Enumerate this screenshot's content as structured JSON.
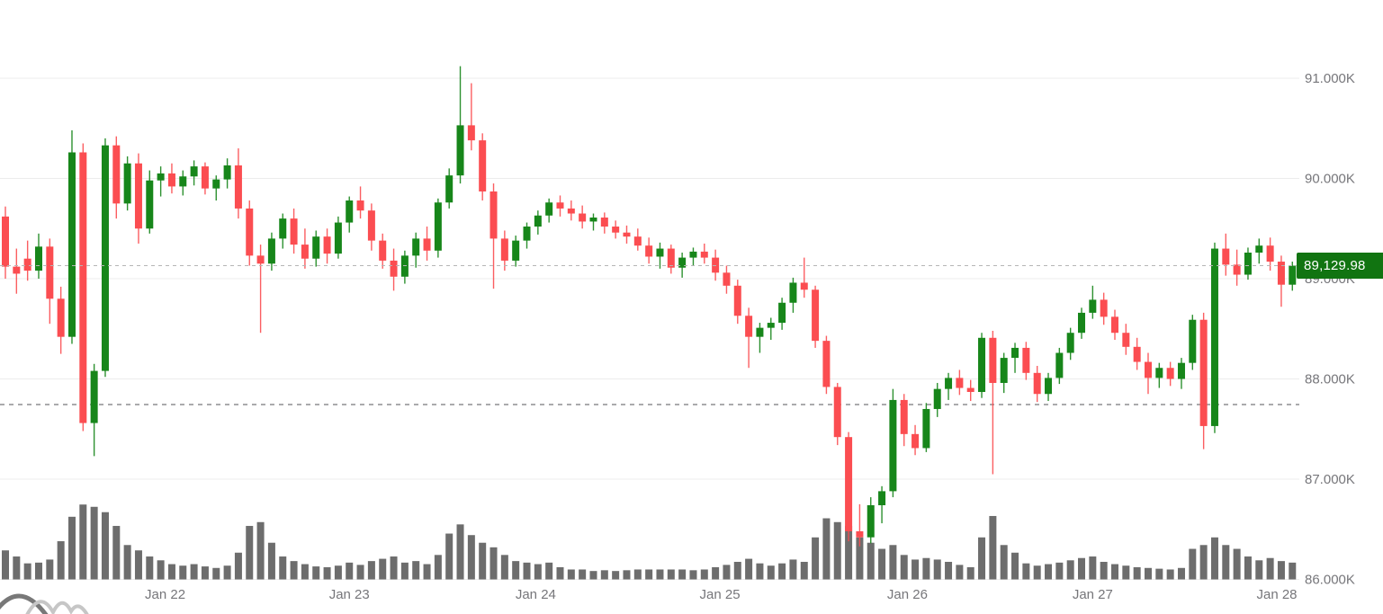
{
  "chart": {
    "kind": "candlestick-with-volume",
    "price_badge_label": "89,129.98",
    "icons": {
      "watermark_logo": "overlapping-wave-arcs"
    }
  },
  "style": {
    "up_color": "#17861a",
    "down_color": "#fb4d51",
    "volume_color": "#6d6d6d",
    "grid_color": "#ececec",
    "axis_text_color": "#76767a",
    "badge_bg": "#117411",
    "badge_text_color": "#ffffff",
    "current_price_line_color": "#b5b5b5",
    "prev_close_line_color": "#55555a",
    "watermark_dark": "#787878",
    "watermark_light": "#c6c6c6",
    "background": "#ffffff"
  },
  "chart_data": {
    "type": "candlestick",
    "title": "",
    "current_price": 89129.98,
    "previous_close_level": 87745,
    "grid": "horizontal-only",
    "legend": "none",
    "ylim": [
      85655,
      91780
    ],
    "y_axis": {
      "tick_labels": [
        "91.000K",
        "90.000K",
        "89.000K",
        "88.000K",
        "87.000K",
        "86.000K"
      ],
      "tick_values": [
        91000,
        90000,
        89000,
        88000,
        87000,
        86000
      ]
    },
    "x_axis": {
      "tick_labels": [
        "Jan 22",
        "Jan 23",
        "Jan 24",
        "Jan 25",
        "Jan 26",
        "Jan 27",
        "Jan 28"
      ],
      "tick_positions": [
        14.4,
        31,
        47.8,
        64.4,
        81.3,
        98,
        114.6
      ]
    },
    "volume_max": 100,
    "candles": [
      [
        89620,
        89720,
        89000,
        89120,
        38
      ],
      [
        89120,
        89300,
        88850,
        89050,
        30
      ],
      [
        89200,
        89380,
        88980,
        89080,
        21
      ],
      [
        89080,
        89450,
        89000,
        89320,
        22
      ],
      [
        89320,
        89400,
        88550,
        88800,
        26
      ],
      [
        88800,
        88920,
        88250,
        88420,
        50
      ],
      [
        88420,
        90480,
        88350,
        90260,
        82
      ],
      [
        90260,
        90350,
        87480,
        87560,
        98
      ],
      [
        87560,
        88150,
        87230,
        88080,
        95
      ],
      [
        88080,
        90400,
        88020,
        90330,
        88
      ],
      [
        90330,
        90420,
        89600,
        89750,
        70
      ],
      [
        89750,
        90220,
        89680,
        90150,
        45
      ],
      [
        90150,
        90250,
        89350,
        89500,
        38
      ],
      [
        89500,
        90080,
        89450,
        89980,
        30
      ],
      [
        89980,
        90120,
        89820,
        90050,
        25
      ],
      [
        90050,
        90150,
        89850,
        89920,
        20
      ],
      [
        89920,
        90080,
        89830,
        90020,
        18
      ],
      [
        90020,
        90180,
        89930,
        90120,
        20
      ],
      [
        90120,
        90160,
        89840,
        89900,
        17
      ],
      [
        89900,
        90030,
        89780,
        89990,
        15
      ],
      [
        89990,
        90200,
        89900,
        90130,
        18
      ],
      [
        90130,
        90300,
        89600,
        89700,
        35
      ],
      [
        89700,
        89780,
        89130,
        89230,
        70
      ],
      [
        89230,
        89340,
        88460,
        89150,
        75
      ],
      [
        89150,
        89460,
        89080,
        89400,
        48
      ],
      [
        89400,
        89650,
        89300,
        89600,
        30
      ],
      [
        89600,
        89700,
        89250,
        89340,
        24
      ],
      [
        89340,
        89500,
        89100,
        89200,
        20
      ],
      [
        89200,
        89480,
        89120,
        89420,
        17
      ],
      [
        89420,
        89500,
        89150,
        89250,
        16
      ],
      [
        89250,
        89620,
        89200,
        89560,
        18
      ],
      [
        89560,
        89820,
        89460,
        89780,
        22
      ],
      [
        89780,
        89920,
        89600,
        89680,
        19
      ],
      [
        89680,
        89750,
        89280,
        89380,
        24
      ],
      [
        89380,
        89450,
        89100,
        89180,
        27
      ],
      [
        89180,
        89300,
        88880,
        89020,
        30
      ],
      [
        89020,
        89280,
        88950,
        89230,
        22
      ],
      [
        89230,
        89460,
        89110,
        89400,
        24
      ],
      [
        89400,
        89520,
        89180,
        89280,
        20
      ],
      [
        89280,
        89800,
        89210,
        89760,
        32
      ],
      [
        89760,
        90100,
        89700,
        90030,
        60
      ],
      [
        90030,
        91120,
        89950,
        90530,
        72
      ],
      [
        90530,
        90950,
        90280,
        90380,
        58
      ],
      [
        90380,
        90450,
        89780,
        89870,
        48
      ],
      [
        89870,
        89950,
        88900,
        89400,
        42
      ],
      [
        89400,
        89480,
        89080,
        89180,
        32
      ],
      [
        89180,
        89430,
        89120,
        89380,
        24
      ],
      [
        89380,
        89560,
        89300,
        89520,
        22
      ],
      [
        89520,
        89680,
        89440,
        89630,
        20
      ],
      [
        89630,
        89800,
        89560,
        89760,
        22
      ],
      [
        89760,
        89830,
        89620,
        89700,
        16
      ],
      [
        89700,
        89780,
        89580,
        89650,
        13
      ],
      [
        89650,
        89730,
        89500,
        89570,
        13
      ],
      [
        89570,
        89650,
        89480,
        89610,
        11
      ],
      [
        89610,
        89660,
        89450,
        89520,
        12
      ],
      [
        89520,
        89580,
        89400,
        89460,
        11
      ],
      [
        89460,
        89530,
        89350,
        89420,
        12
      ],
      [
        89420,
        89500,
        89280,
        89330,
        13
      ],
      [
        89330,
        89410,
        89150,
        89220,
        13
      ],
      [
        89220,
        89360,
        89100,
        89300,
        13
      ],
      [
        89300,
        89340,
        89050,
        89110,
        13
      ],
      [
        89110,
        89260,
        89010,
        89210,
        13
      ],
      [
        89210,
        89310,
        89130,
        89270,
        12
      ],
      [
        89270,
        89350,
        89150,
        89210,
        13
      ],
      [
        89210,
        89290,
        88980,
        89060,
        16
      ],
      [
        89060,
        89130,
        88850,
        88930,
        19
      ],
      [
        88930,
        88990,
        88550,
        88630,
        23
      ],
      [
        88630,
        88710,
        88110,
        88420,
        27
      ],
      [
        88420,
        88560,
        88260,
        88510,
        21
      ],
      [
        88510,
        88610,
        88390,
        88560,
        18
      ],
      [
        88560,
        88810,
        88490,
        88760,
        21
      ],
      [
        88760,
        89010,
        88660,
        88960,
        26
      ],
      [
        88960,
        89210,
        88810,
        88890,
        23
      ],
      [
        88890,
        88930,
        88310,
        88380,
        55
      ],
      [
        88380,
        88430,
        87850,
        87920,
        80
      ],
      [
        87920,
        87960,
        87340,
        87420,
        75
      ],
      [
        87420,
        87470,
        86380,
        86480,
        70
      ],
      [
        86480,
        86750,
        86330,
        86420,
        55
      ],
      [
        86420,
        86820,
        86360,
        86740,
        48
      ],
      [
        86740,
        86930,
        86560,
        86880,
        40
      ],
      [
        86880,
        87900,
        86820,
        87790,
        45
      ],
      [
        87790,
        87850,
        87330,
        87450,
        32
      ],
      [
        87450,
        87540,
        87240,
        87310,
        26
      ],
      [
        87310,
        87760,
        87270,
        87700,
        28
      ],
      [
        87700,
        87960,
        87620,
        87900,
        26
      ],
      [
        87900,
        88060,
        87790,
        88010,
        23
      ],
      [
        88010,
        88090,
        87840,
        87910,
        19
      ],
      [
        87910,
        87990,
        87780,
        87870,
        16
      ],
      [
        87870,
        88460,
        87810,
        88410,
        55
      ],
      [
        88410,
        88480,
        87050,
        87960,
        83
      ],
      [
        87960,
        88260,
        87860,
        88210,
        45
      ],
      [
        88210,
        88360,
        88060,
        88310,
        35
      ],
      [
        88310,
        88370,
        87990,
        88060,
        21
      ],
      [
        88060,
        88130,
        87770,
        87850,
        18
      ],
      [
        87850,
        88060,
        87780,
        88010,
        20
      ],
      [
        88010,
        88310,
        87950,
        88260,
        22
      ],
      [
        88260,
        88510,
        88190,
        88460,
        25
      ],
      [
        88460,
        88710,
        88400,
        88660,
        28
      ],
      [
        88660,
        88930,
        88600,
        88790,
        30
      ],
      [
        88790,
        88860,
        88540,
        88620,
        23
      ],
      [
        88620,
        88690,
        88390,
        88460,
        20
      ],
      [
        88460,
        88550,
        88240,
        88320,
        18
      ],
      [
        88320,
        88410,
        88090,
        88170,
        16
      ],
      [
        88170,
        88260,
        87850,
        88010,
        15
      ],
      [
        88010,
        88160,
        87910,
        88110,
        14
      ],
      [
        88110,
        88170,
        87930,
        88000,
        13
      ],
      [
        88000,
        88210,
        87900,
        88160,
        15
      ],
      [
        88160,
        88640,
        88090,
        88590,
        40
      ],
      [
        88590,
        88660,
        87300,
        87530,
        45
      ],
      [
        87530,
        89360,
        87460,
        89300,
        55
      ],
      [
        89300,
        89450,
        89030,
        89140,
        45
      ],
      [
        89140,
        89290,
        88930,
        89040,
        40
      ],
      [
        89040,
        89310,
        88990,
        89260,
        30
      ],
      [
        89260,
        89400,
        89150,
        89330,
        25
      ],
      [
        89330,
        89410,
        89080,
        89170,
        28
      ],
      [
        89170,
        89230,
        88720,
        88940,
        24
      ],
      [
        88940,
        89170,
        88880,
        89130,
        22
      ]
    ]
  }
}
